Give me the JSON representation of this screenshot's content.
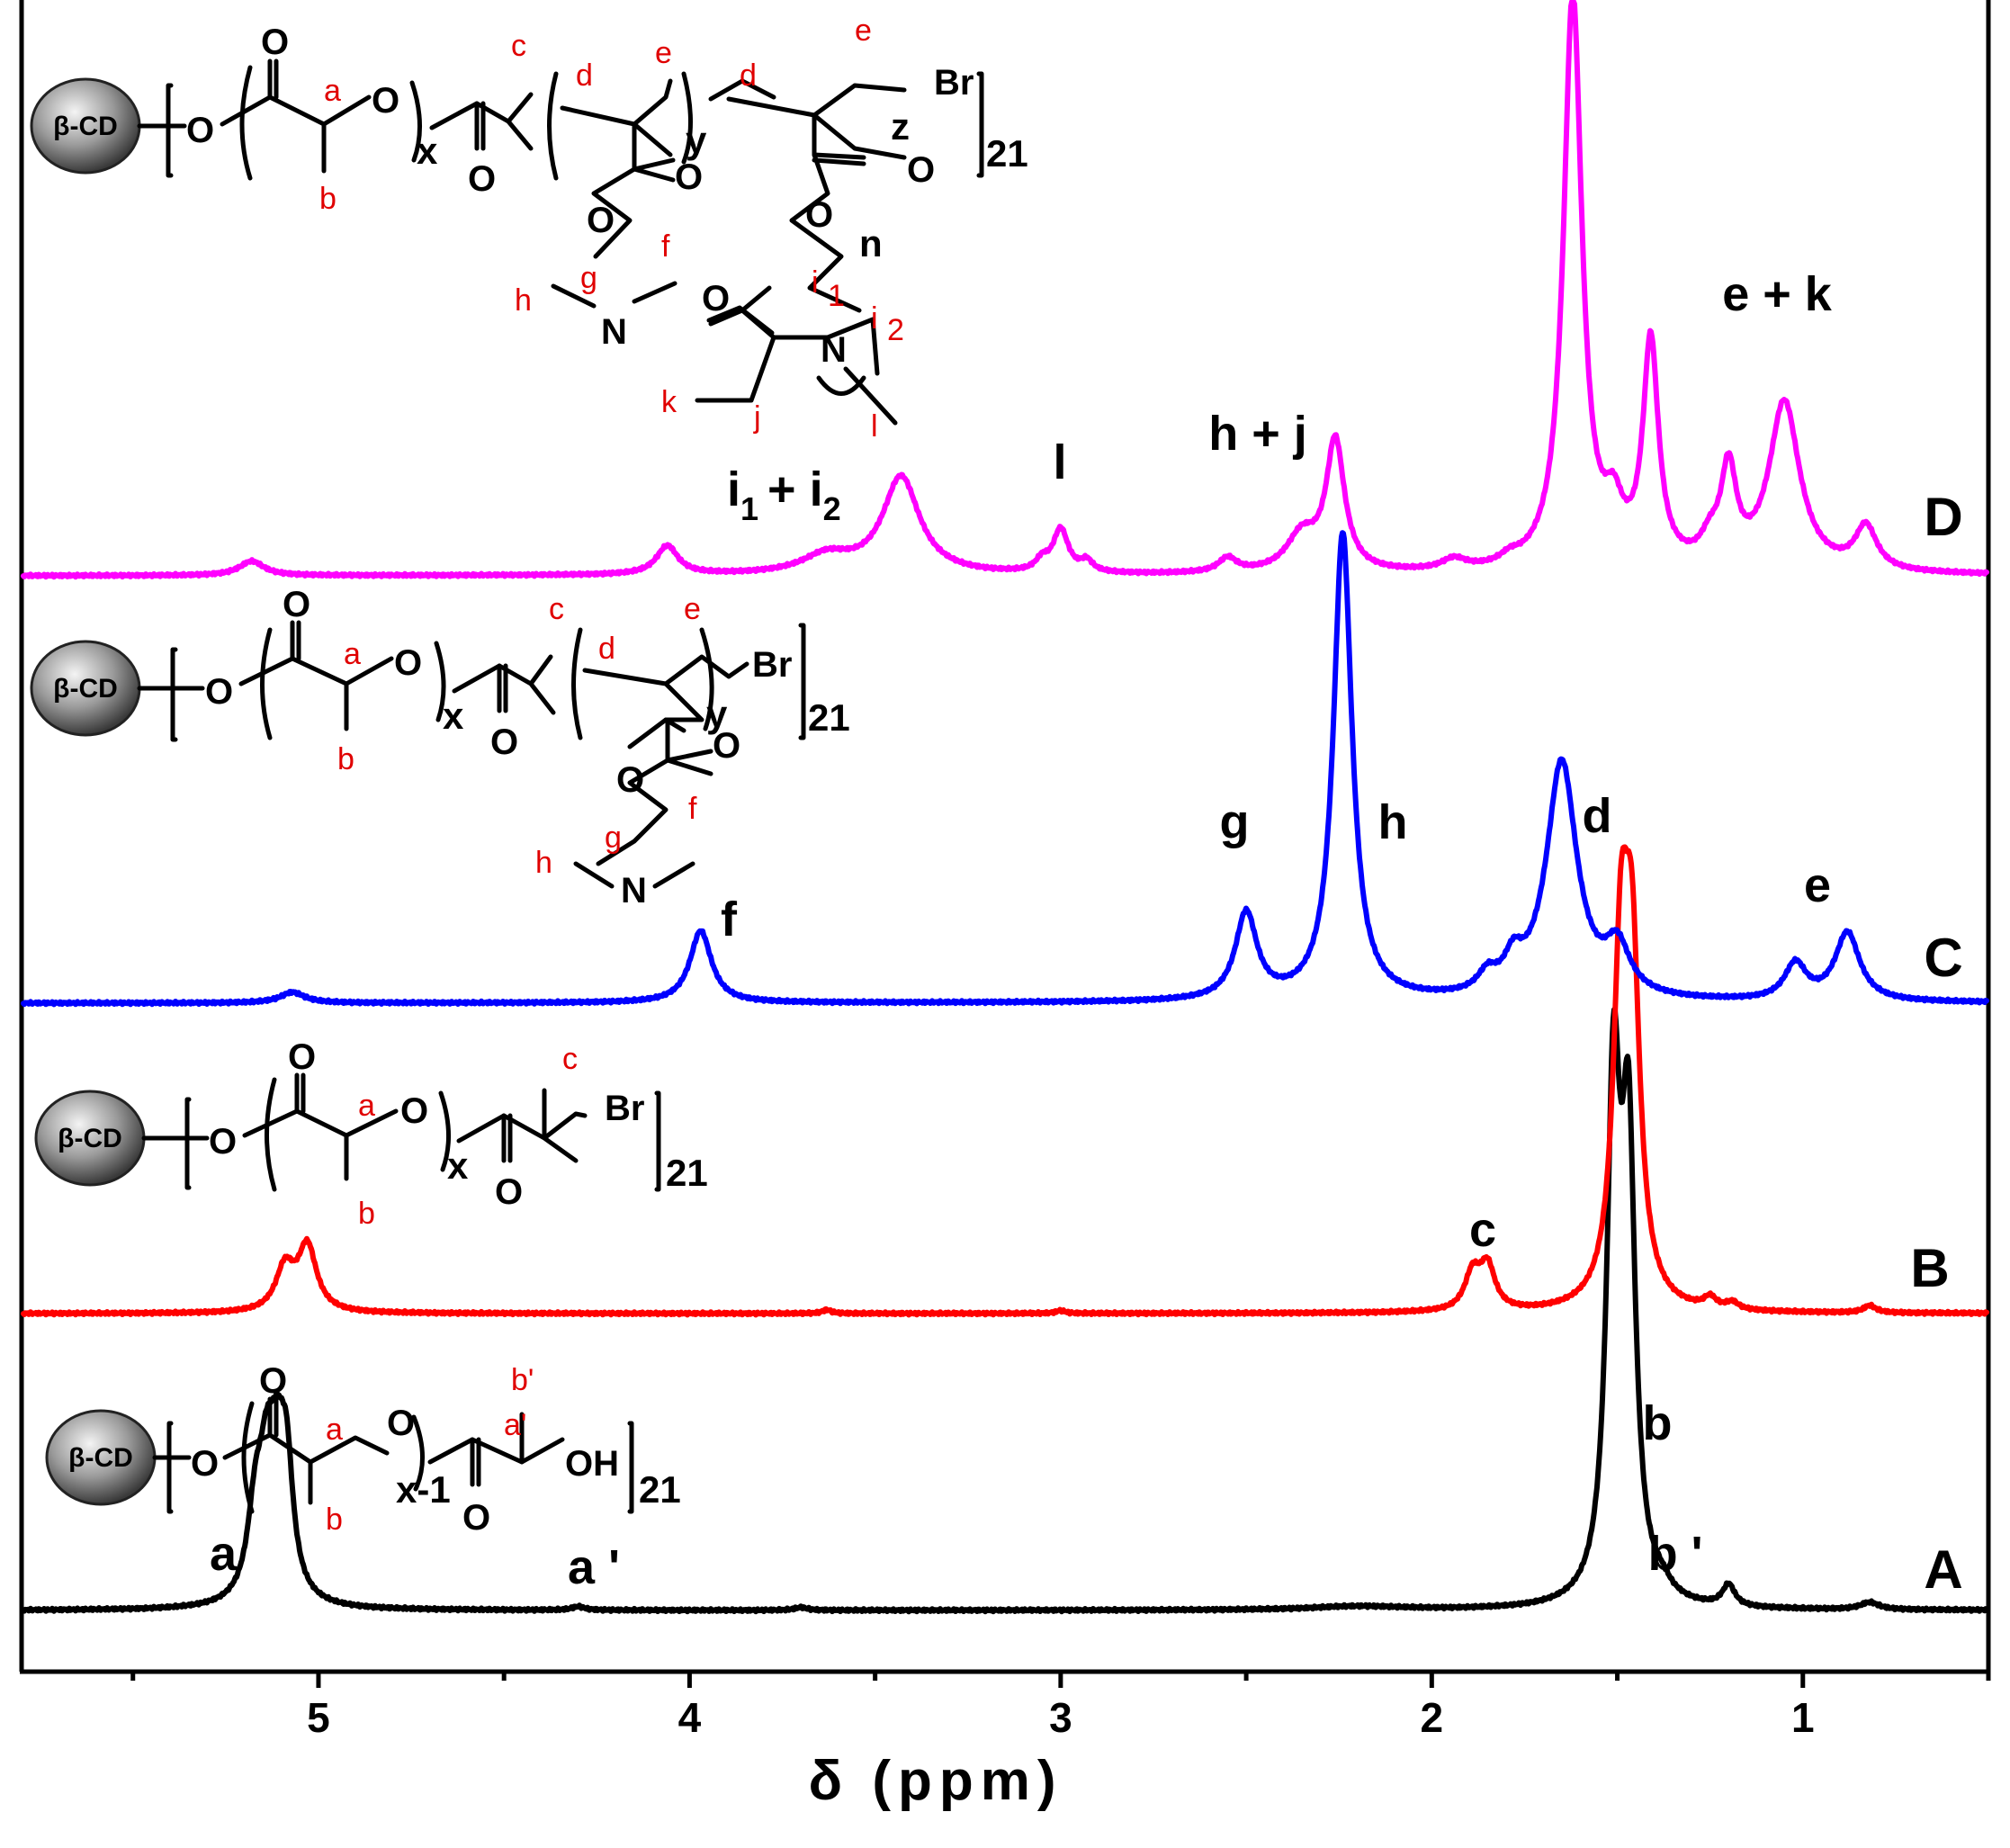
{
  "chart_data": {
    "type": "line",
    "title": "",
    "xlabel": "δ  (ppm)",
    "ylabel": "",
    "xlim": [
      5.8,
      0.5
    ],
    "x_reversed": true,
    "xticks": [
      5,
      4,
      3,
      2,
      1
    ],
    "grid": false,
    "series": [
      {
        "name": "A",
        "color": "#000000",
        "baseline": 0,
        "peaks": [
          {
            "x": 5.17,
            "h": 0.22,
            "w": 0.025
          },
          {
            "x": 5.14,
            "h": 0.26,
            "w": 0.025
          },
          {
            "x": 5.11,
            "h": 0.36,
            "w": 0.03
          },
          {
            "x": 5.085,
            "h": 0.26,
            "w": 0.02
          },
          {
            "x": 4.3,
            "h": 0.01,
            "w": 0.02
          },
          {
            "x": 3.7,
            "h": 0.008,
            "w": 0.02
          },
          {
            "x": 2.2,
            "h": 0.01,
            "w": 0.15
          },
          {
            "x": 1.51,
            "h": 1.38,
            "w": 0.022
          },
          {
            "x": 1.47,
            "h": 1.2,
            "w": 0.022
          },
          {
            "x": 1.38,
            "h": 0.03,
            "w": 0.03
          },
          {
            "x": 1.2,
            "h": 0.06,
            "w": 0.02
          },
          {
            "x": 0.82,
            "h": 0.02,
            "w": 0.03
          }
        ]
      },
      {
        "name": "B",
        "color": "#ff0000",
        "baseline": 0,
        "peaks": [
          {
            "x": 5.09,
            "h": 0.12,
            "w": 0.03
          },
          {
            "x": 5.03,
            "h": 0.18,
            "w": 0.03
          },
          {
            "x": 3.63,
            "h": 0.01,
            "w": 0.015
          },
          {
            "x": 3.0,
            "h": 0.008,
            "w": 0.015
          },
          {
            "x": 1.89,
            "h": 0.1,
            "w": 0.025
          },
          {
            "x": 1.85,
            "h": 0.12,
            "w": 0.025
          },
          {
            "x": 1.49,
            "h": 0.9,
            "w": 0.025
          },
          {
            "x": 1.46,
            "h": 0.85,
            "w": 0.025
          },
          {
            "x": 1.25,
            "h": 0.03,
            "w": 0.02
          },
          {
            "x": 1.19,
            "h": 0.02,
            "w": 0.02
          },
          {
            "x": 0.82,
            "h": 0.02,
            "w": 0.02
          }
        ]
      },
      {
        "name": "C",
        "color": "#0000ff",
        "baseline": 0,
        "peaks": [
          {
            "x": 5.07,
            "h": 0.03,
            "w": 0.04
          },
          {
            "x": 3.97,
            "h": 0.2,
            "w": 0.035
          },
          {
            "x": 2.5,
            "h": 0.24,
            "w": 0.035
          },
          {
            "x": 2.24,
            "h": 1.3,
            "w": 0.03
          },
          {
            "x": 1.85,
            "h": 0.05,
            "w": 0.03
          },
          {
            "x": 1.78,
            "h": 0.08,
            "w": 0.03
          },
          {
            "x": 1.65,
            "h": 0.66,
            "w": 0.05
          },
          {
            "x": 1.5,
            "h": 0.13,
            "w": 0.04
          },
          {
            "x": 1.02,
            "h": 0.1,
            "w": 0.035
          },
          {
            "x": 0.88,
            "h": 0.19,
            "w": 0.04
          }
        ]
      },
      {
        "name": "D",
        "color": "#ff00ff",
        "baseline": 0,
        "peaks": [
          {
            "x": 5.18,
            "h": 0.04,
            "w": 0.04
          },
          {
            "x": 4.06,
            "h": 0.08,
            "w": 0.035
          },
          {
            "x": 3.63,
            "h": 0.05,
            "w": 0.08
          },
          {
            "x": 3.43,
            "h": 0.27,
            "w": 0.06
          },
          {
            "x": 3.05,
            "h": 0.03,
            "w": 0.02
          },
          {
            "x": 3.0,
            "h": 0.12,
            "w": 0.025
          },
          {
            "x": 2.93,
            "h": 0.03,
            "w": 0.02
          },
          {
            "x": 2.55,
            "h": 0.04,
            "w": 0.03
          },
          {
            "x": 2.35,
            "h": 0.1,
            "w": 0.05
          },
          {
            "x": 2.26,
            "h": 0.36,
            "w": 0.03
          },
          {
            "x": 1.94,
            "h": 0.03,
            "w": 0.04
          },
          {
            "x": 1.79,
            "h": 0.02,
            "w": 0.03
          },
          {
            "x": 1.62,
            "h": 1.6,
            "w": 0.03
          },
          {
            "x": 1.51,
            "h": 0.13,
            "w": 0.03
          },
          {
            "x": 1.41,
            "h": 0.62,
            "w": 0.025
          },
          {
            "x": 1.25,
            "h": 0.06,
            "w": 0.03
          },
          {
            "x": 1.2,
            "h": 0.26,
            "w": 0.025
          },
          {
            "x": 1.05,
            "h": 0.47,
            "w": 0.05
          },
          {
            "x": 0.83,
            "h": 0.12,
            "w": 0.035
          }
        ]
      }
    ],
    "spectrum_labels": [
      "A",
      "B",
      "C",
      "D"
    ],
    "peak_labels": {
      "A": [
        "a",
        "a '",
        "b",
        "b '"
      ],
      "B": [
        "c"
      ],
      "C": [
        "f",
        "g",
        "h",
        "d",
        "e"
      ],
      "D": [
        "i",
        "1",
        "+ i",
        "2",
        "l",
        "h + j",
        "e + k"
      ]
    }
  },
  "structures": {
    "core": "β-CD",
    "A": {
      "sub_x": "x-1",
      "repeat": "21",
      "end": "OH",
      "red": [
        "a",
        "b",
        "a'",
        "b'"
      ]
    },
    "B": {
      "sub_x": "x",
      "repeat": "21",
      "end": "Br",
      "red": [
        "a",
        "b",
        "c"
      ]
    },
    "C": {
      "sub_x": "x",
      "sub_y": "y",
      "repeat": "21",
      "end": "Br",
      "atoms": [
        "O",
        "N"
      ],
      "red": [
        "a",
        "b",
        "c",
        "d",
        "e",
        "f",
        "g",
        "h"
      ]
    },
    "D": {
      "sub_x": "x",
      "sub_y": "y",
      "sub_z": "z",
      "sub_n": "n",
      "repeat": "21",
      "end": "Br",
      "atoms": [
        "O",
        "N"
      ],
      "red": [
        "a",
        "b",
        "c",
        "d",
        "e",
        "d",
        "e",
        "f",
        "g",
        "h",
        "i",
        "1",
        "i",
        "2",
        "k",
        "j",
        "l"
      ]
    }
  }
}
